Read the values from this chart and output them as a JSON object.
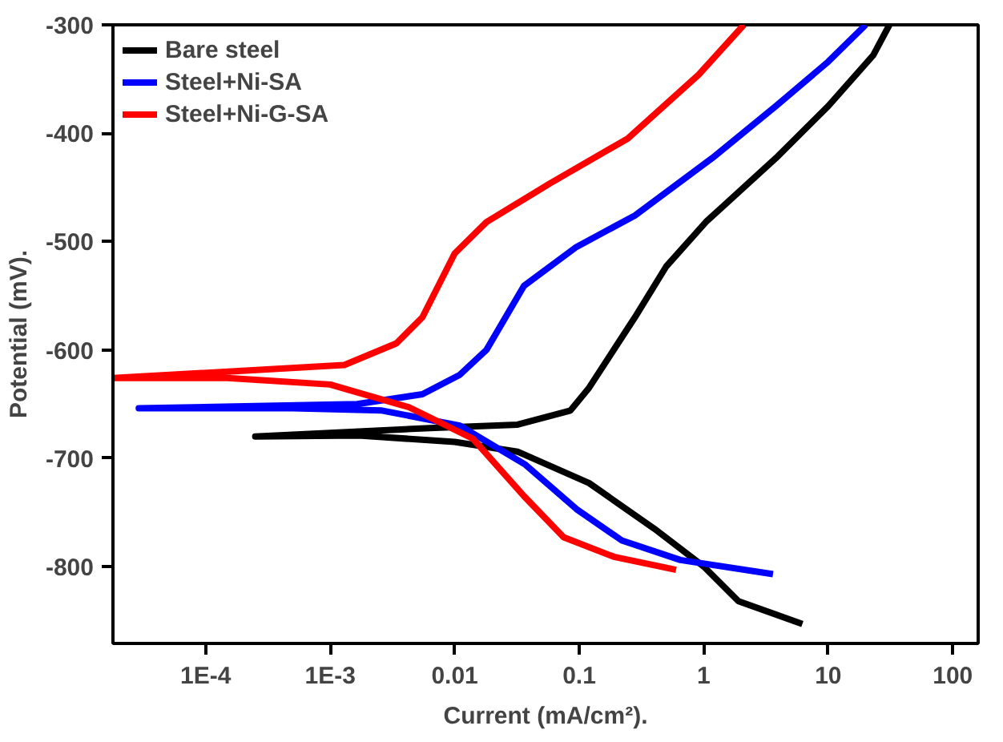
{
  "chart_data": {
    "type": "line",
    "xlabel": "Current (mA/cm²).",
    "ylabel": "Potential (mV).",
    "log": "x",
    "xlim": [
      1.8e-05,
      160
    ],
    "ylim": [
      -871,
      -300
    ],
    "xticks": [
      {
        "value": 0.0001,
        "label": "1E-4"
      },
      {
        "value": 0.001,
        "label": "1E-3"
      },
      0.01,
      0.1,
      1,
      10,
      100
    ],
    "yticks": [
      -800,
      -700,
      -600,
      -500,
      -400,
      -300
    ],
    "grid": false,
    "legend": "top left",
    "marker": "none",
    "line_style": "solid",
    "series": [
      {
        "name": "Bare steel",
        "color": "#000000",
        "x": [
          6.2,
          1.9,
          1.0,
          0.4,
          0.12,
          0.032,
          0.01,
          0.0017,
          0.00025,
          0.0069,
          0.032,
          0.085,
          0.12,
          0.28,
          0.5,
          1.04,
          3.8,
          10,
          23,
          31
        ],
        "values": [
          -853,
          -832,
          -800,
          -765,
          -723,
          -694,
          -685,
          -679,
          -680,
          -672,
          -669,
          -656,
          -635,
          -570,
          -523,
          -482,
          -423,
          -375,
          -328,
          -300
        ]
      },
      {
        "name": "Steel+Ni-SA",
        "color": "#0000ff",
        "x": [
          3.6,
          0.65,
          0.22,
          0.095,
          0.037,
          0.011,
          0.0026,
          0.0005,
          5.5e-05,
          2.9e-05,
          0.00165,
          0.0055,
          0.011,
          0.018,
          0.036,
          0.095,
          0.28,
          1.17,
          3.8,
          10,
          20
        ],
        "values": [
          -807,
          -794,
          -776,
          -747,
          -706,
          -670,
          -656,
          -654,
          -654,
          -654,
          -650,
          -641,
          -623,
          -600,
          -541,
          -505,
          -476,
          -423,
          -375,
          -334,
          -300
        ]
      },
      {
        "name": "Steel+Ni-G-SA",
        "color": "#ff0000",
        "x": [
          0.6,
          0.19,
          0.075,
          0.036,
          0.014,
          0.0043,
          0.001,
          0.00015,
          1.8e-05,
          0.0013,
          0.0034,
          0.0055,
          0.01,
          0.018,
          0.059,
          0.245,
          0.91,
          2.1
        ],
        "values": [
          -803,
          -791,
          -773,
          -735,
          -682,
          -653,
          -632,
          -626,
          -626,
          -614,
          -594,
          -570,
          -511,
          -482,
          -446,
          -405,
          -346,
          -300
        ]
      }
    ]
  }
}
